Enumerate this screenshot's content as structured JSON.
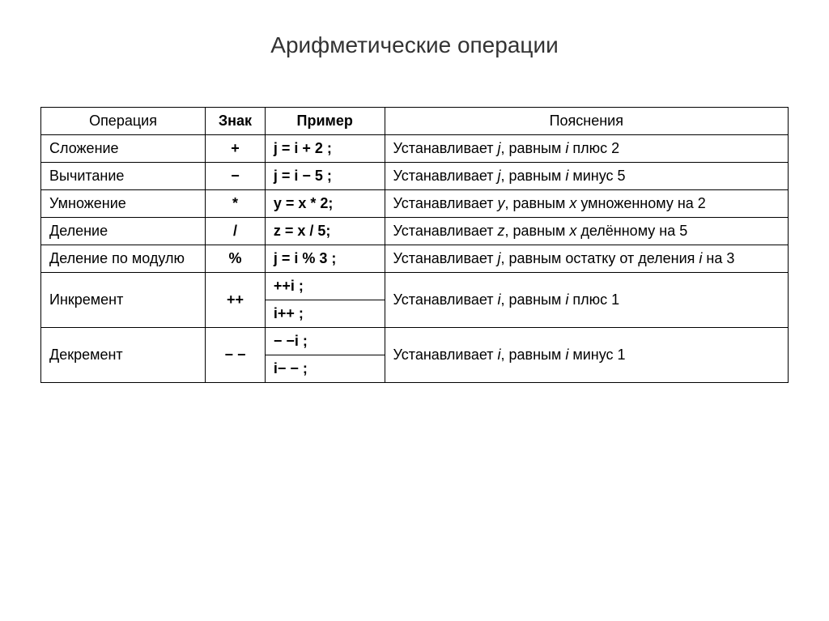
{
  "title": "Арифметические операции",
  "table": {
    "columns": [
      "Операция",
      "Знак",
      "Пример",
      "Пояснения"
    ],
    "rows": [
      {
        "operation": "Сложение",
        "sign": "+",
        "examples": [
          "j = i + 2 ;"
        ],
        "descriptions": [
          "Устанавливает <span class=\"italic\">j</span>, равным <span class=\"italic\">i</span> плюс 2"
        ]
      },
      {
        "operation": "Вычитание",
        "sign": "−",
        "examples": [
          "j = i − 5 ;"
        ],
        "descriptions": [
          "Устанавливает <span class=\"italic\">j</span>, равным <span class=\"italic\">i</span> минус 5"
        ]
      },
      {
        "operation": "Умножение",
        "sign": "*",
        "examples": [
          "y = x * 2;"
        ],
        "descriptions": [
          "Устанавливает <span class=\"italic\">y</span>, равным <span class=\"italic\">x</span> умноженному на 2"
        ]
      },
      {
        "operation": "Деление",
        "sign": "/",
        "examples": [
          "z = x / 5;"
        ],
        "descriptions": [
          "Устанавливает <span class=\"italic\">z</span>, равным <span class=\"italic\">x</span> делённому на 5"
        ]
      },
      {
        "operation": "Деление по модулю",
        "sign": "%",
        "examples": [
          "j = i % 3 ;"
        ],
        "descriptions": [
          "Устанавливает <span class=\"italic\">j</span>, равным остатку от деления <span class=\"italic\">i</span> на 3"
        ]
      },
      {
        "operation": "Инкремент",
        "sign": "++",
        "examples": [
          "++i ;",
          "i++ ;"
        ],
        "descriptions": [
          "Устанавливает <span class=\"italic\">i</span>, равным <span class=\"italic\">i</span> плюс 1"
        ]
      },
      {
        "operation": "Декремент",
        "sign": "− −",
        "examples": [
          "− −i ;",
          "i− − ;"
        ],
        "descriptions": [
          "Устанавливает <span class=\"italic\">i</span>, равным <span class=\"italic\">i</span> минус 1"
        ]
      }
    ],
    "column_widths": [
      "22%",
      "8%",
      "16%",
      "54%"
    ],
    "border_color": "#000000",
    "background_color": "#ffffff",
    "font_size_body": 18,
    "font_size_title": 28,
    "text_color": "#333333"
  }
}
